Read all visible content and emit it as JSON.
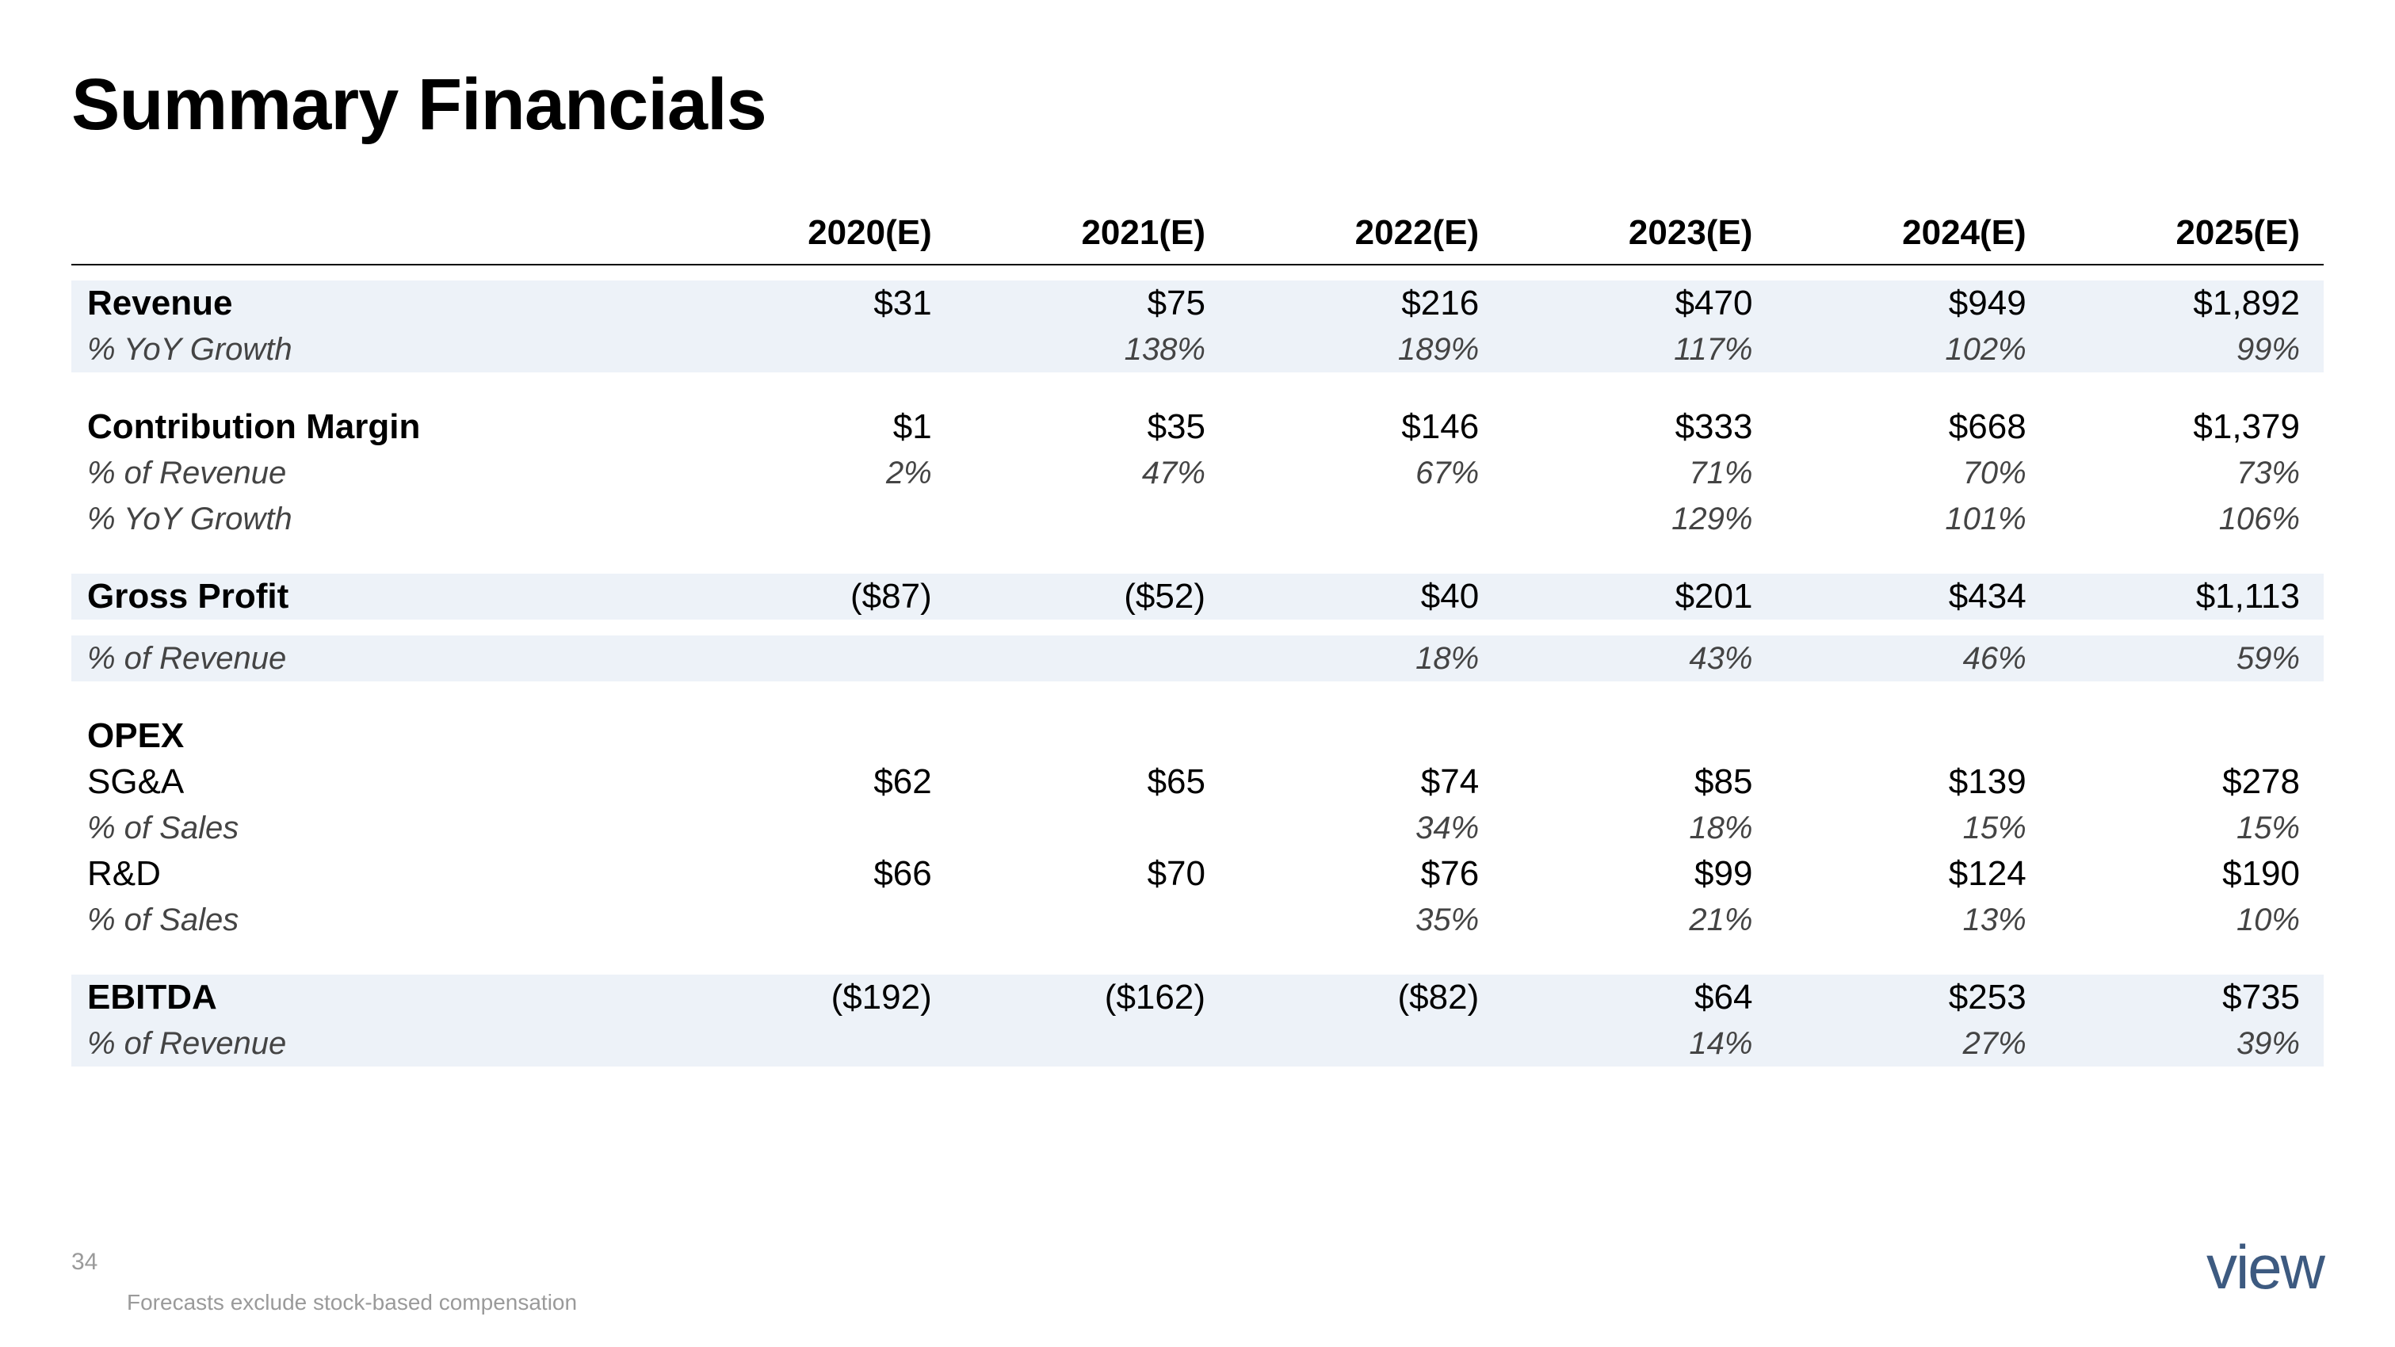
{
  "title": "Summary Financials",
  "page_number": "34",
  "footnote": "Forecasts exclude stock-based compensation",
  "logo_text": "view",
  "colors": {
    "background": "#ffffff",
    "text": "#000000",
    "sub_text": "#444444",
    "shade_row": "#edf2f8",
    "header_rule": "#000000",
    "footer_text": "#9a9a9a",
    "logo": "#3d5a80"
  },
  "typography": {
    "title_fontsize_pt": 46,
    "header_fontsize_pt": 22,
    "body_fontsize_pt": 22,
    "sub_fontsize_pt": 20,
    "footnote_fontsize_pt": 14
  },
  "table": {
    "columns": [
      "2020(E)",
      "2021(E)",
      "2022(E)",
      "2023(E)",
      "2024(E)",
      "2025(E)"
    ],
    "rows": [
      {
        "type": "spacer-sm"
      },
      {
        "type": "section",
        "shade": true,
        "label": "Revenue",
        "values": [
          "$31",
          "$75",
          "$216",
          "$470",
          "$949",
          "$1,892"
        ]
      },
      {
        "type": "sub",
        "shade": true,
        "label": "% YoY Growth",
        "values": [
          "",
          "138%",
          "189%",
          "117%",
          "102%",
          "99%"
        ]
      },
      {
        "type": "spacer"
      },
      {
        "type": "section",
        "shade": false,
        "label": "Contribution Margin",
        "values": [
          "$1",
          "$35",
          "$146",
          "$333",
          "$668",
          "$1,379"
        ]
      },
      {
        "type": "sub",
        "shade": false,
        "label": "% of Revenue",
        "values": [
          "2%",
          "47%",
          "67%",
          "71%",
          "70%",
          "73%"
        ]
      },
      {
        "type": "sub",
        "shade": false,
        "label": "% YoY Growth",
        "values": [
          "",
          "",
          "",
          "129%",
          "101%",
          "106%"
        ]
      },
      {
        "type": "spacer"
      },
      {
        "type": "section",
        "shade": true,
        "label": "Gross Profit",
        "values": [
          "($87)",
          "($52)",
          "$40",
          "$201",
          "$434",
          "$1,113"
        ]
      },
      {
        "type": "spacer-sm"
      },
      {
        "type": "sub",
        "shade": true,
        "label": "% of Revenue",
        "values": [
          "",
          "",
          "18%",
          "43%",
          "46%",
          "59%"
        ]
      },
      {
        "type": "spacer"
      },
      {
        "type": "section",
        "shade": false,
        "label": "OPEX",
        "values": [
          "",
          "",
          "",
          "",
          "",
          ""
        ]
      },
      {
        "type": "plain",
        "shade": false,
        "label": "SG&A",
        "values": [
          "$62",
          "$65",
          "$74",
          "$85",
          "$139",
          "$278"
        ]
      },
      {
        "type": "sub",
        "shade": false,
        "label": "% of Sales",
        "values": [
          "",
          "",
          "34%",
          "18%",
          "15%",
          "15%"
        ]
      },
      {
        "type": "plain",
        "shade": false,
        "label": "R&D",
        "values": [
          "$66",
          "$70",
          "$76",
          "$99",
          "$124",
          "$190"
        ]
      },
      {
        "type": "sub",
        "shade": false,
        "label": "% of Sales",
        "values": [
          "",
          "",
          "35%",
          "21%",
          "13%",
          "10%"
        ]
      },
      {
        "type": "spacer"
      },
      {
        "type": "section",
        "shade": true,
        "label": "EBITDA",
        "values": [
          "($192)",
          "($162)",
          "($82)",
          "$64",
          "$253",
          "$735"
        ]
      },
      {
        "type": "sub",
        "shade": true,
        "label": "% of Revenue",
        "values": [
          "",
          "",
          "",
          "14%",
          "27%",
          "39%"
        ]
      }
    ]
  }
}
